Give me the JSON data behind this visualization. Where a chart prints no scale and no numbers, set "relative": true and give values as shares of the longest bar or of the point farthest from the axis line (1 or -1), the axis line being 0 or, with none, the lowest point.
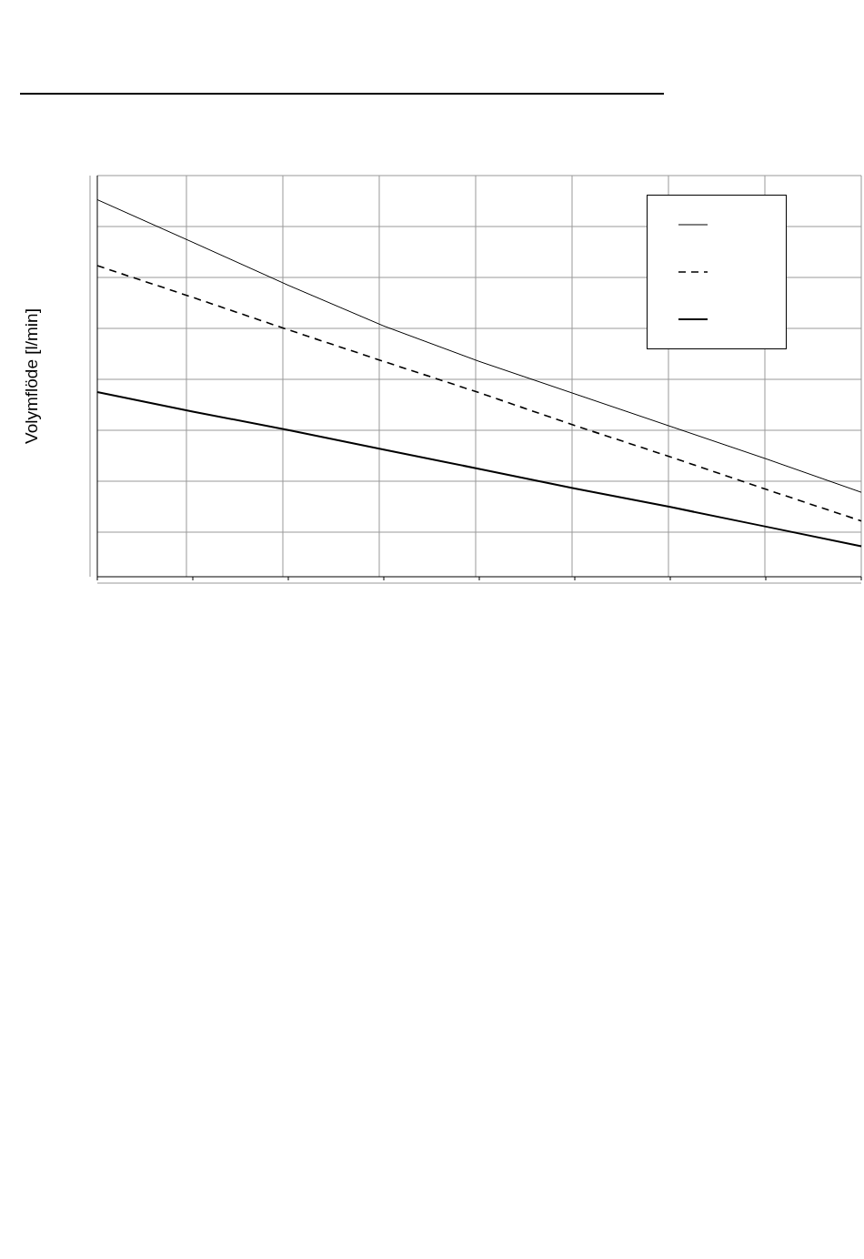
{
  "chart_data": {
    "type": "line",
    "ylabel": "Volymflöde [l/min]",
    "relative": true,
    "categories": [
      null,
      null,
      null,
      null,
      null,
      null,
      null,
      null,
      null
    ],
    "grid": true,
    "marker": "none",
    "series": [
      {
        "color": "#000000",
        "line_style": "solid",
        "values": [
          1,
          0.887,
          0.773,
          0.665,
          0.571,
          0.485,
          0.399,
          0.313,
          0.224
        ]
      },
      {
        "color": "#000000",
        "line_style": "dashed",
        "values": [
          0.825,
          0.741,
          0.655,
          0.571,
          0.488,
          0.401,
          0.318,
          0.232,
          0.148
        ]
      },
      {
        "color": "#000000",
        "line_style": "solid",
        "values": [
          0.49,
          0.438,
          0.389,
          0.337,
          0.286,
          0.234,
          0.185,
          0.133,
          0.081
        ]
      }
    ]
  }
}
